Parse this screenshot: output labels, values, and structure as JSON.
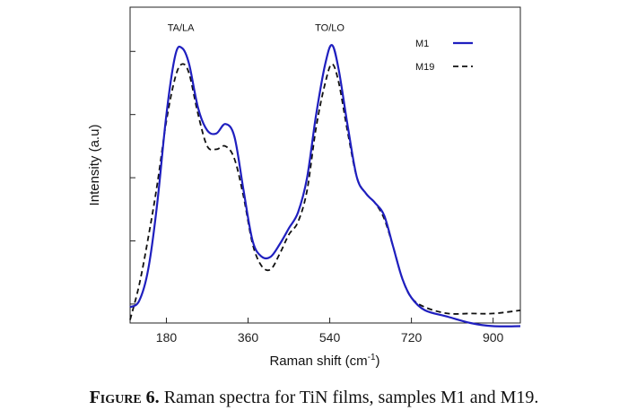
{
  "caption": {
    "label": "Figure 6.",
    "text": " Raman spectra for TiN films, samples M1 and M19."
  },
  "chart_data": {
    "type": "line",
    "xlabel": "Raman shift (cm",
    "xlabel_sup": "-1",
    "xlabel_end": ")",
    "ylabel": "Intensity (a.u)",
    "xlim": [
      100,
      960
    ],
    "ylim": [
      0,
      1
    ],
    "xticks": [
      180,
      360,
      540,
      720,
      900
    ],
    "yticks": [
      0.06,
      0.26,
      0.46,
      0.66,
      0.86
    ],
    "grid": false,
    "legend_position": "top-right",
    "annotations": [
      {
        "text": "TA/LA",
        "x": 212,
        "y": 0.925
      },
      {
        "text": "TO/LO",
        "x": 540,
        "y": 0.925
      }
    ],
    "series": [
      {
        "name": "M1",
        "color": "#1f1fbf",
        "dash": "solid",
        "x": [
          100,
          120,
          140,
          160,
          180,
          200,
          215,
          230,
          250,
          270,
          290,
          310,
          330,
          350,
          370,
          390,
          410,
          430,
          450,
          470,
          490,
          510,
          530,
          545,
          560,
          580,
          600,
          620,
          640,
          660,
          680,
          700,
          720,
          750,
          800,
          850,
          900,
          960
        ],
        "y": [
          0.05,
          0.07,
          0.17,
          0.38,
          0.66,
          0.85,
          0.87,
          0.82,
          0.68,
          0.61,
          0.6,
          0.63,
          0.59,
          0.42,
          0.26,
          0.21,
          0.21,
          0.25,
          0.3,
          0.35,
          0.46,
          0.66,
          0.82,
          0.88,
          0.8,
          0.62,
          0.46,
          0.41,
          0.38,
          0.34,
          0.24,
          0.14,
          0.08,
          0.04,
          0.02,
          0.0,
          -0.01,
          -0.01
        ]
      },
      {
        "name": "M19",
        "color": "#111111",
        "dash": "dashed",
        "x": [
          100,
          120,
          140,
          160,
          180,
          200,
          215,
          230,
          250,
          270,
          290,
          310,
          330,
          350,
          370,
          390,
          410,
          430,
          450,
          470,
          490,
          510,
          530,
          545,
          560,
          580,
          600,
          620,
          640,
          660,
          680,
          700,
          720,
          750,
          800,
          850,
          900,
          960
        ],
        "y": [
          0.01,
          0.12,
          0.27,
          0.44,
          0.64,
          0.78,
          0.82,
          0.79,
          0.66,
          0.56,
          0.55,
          0.56,
          0.52,
          0.4,
          0.25,
          0.18,
          0.17,
          0.22,
          0.28,
          0.32,
          0.42,
          0.62,
          0.76,
          0.82,
          0.76,
          0.6,
          0.46,
          0.41,
          0.38,
          0.33,
          0.24,
          0.14,
          0.08,
          0.05,
          0.03,
          0.03,
          0.03,
          0.04
        ]
      }
    ]
  }
}
